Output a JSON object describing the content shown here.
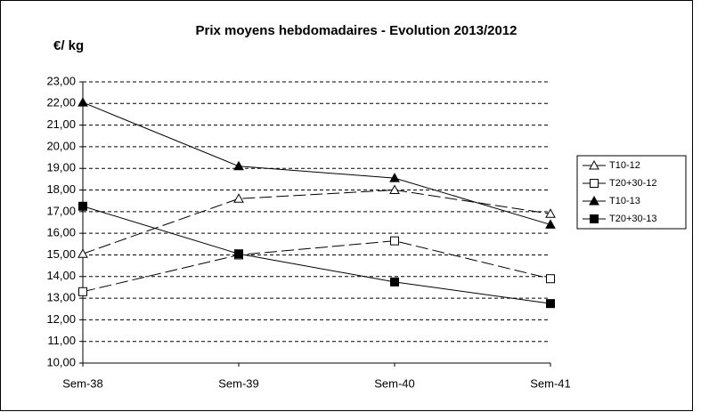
{
  "chart_data": {
    "type": "line",
    "title": "Prix moyens hebdomadaires - Evolution  2013/2012",
    "y_label": "€/ kg",
    "categories": [
      "Sem-38",
      "Sem-39",
      "Sem-40",
      "Sem-41"
    ],
    "series": [
      {
        "name": "T10-12",
        "color": "#000000",
        "dashed": true,
        "marker": "triangle",
        "filled": false,
        "values": [
          15.05,
          17.6,
          18.0,
          16.9
        ]
      },
      {
        "name": "T20+30-12",
        "color": "#000000",
        "dashed": true,
        "marker": "square",
        "filled": false,
        "values": [
          13.3,
          15.0,
          15.65,
          13.9
        ]
      },
      {
        "name": "T10-13",
        "color": "#000000",
        "dashed": false,
        "marker": "triangle",
        "filled": true,
        "values": [
          22.05,
          19.1,
          18.55,
          16.4
        ]
      },
      {
        "name": "T20+30-13",
        "color": "#000000",
        "dashed": false,
        "marker": "square",
        "filled": true,
        "values": [
          17.25,
          15.05,
          13.75,
          12.75
        ]
      }
    ],
    "ylim": [
      10,
      23
    ],
    "yticks": [
      {
        "value": 10,
        "label": "10,00"
      },
      {
        "value": 11,
        "label": "11,00"
      },
      {
        "value": 12,
        "label": "12,00"
      },
      {
        "value": 13,
        "label": "13,00"
      },
      {
        "value": 14,
        "label": "14,00"
      },
      {
        "value": 15,
        "label": "15,00"
      },
      {
        "value": 16,
        "label": "16,00"
      },
      {
        "value": 17,
        "label": "17,00"
      },
      {
        "value": 18,
        "label": "18,00"
      },
      {
        "value": 19,
        "label": "19,00"
      },
      {
        "value": 20,
        "label": "20,00"
      },
      {
        "value": 21,
        "label": "21,00"
      },
      {
        "value": 22,
        "label": "22,00"
      },
      {
        "value": 23,
        "label": "23,00"
      }
    ],
    "grid": true,
    "legend": "right"
  }
}
